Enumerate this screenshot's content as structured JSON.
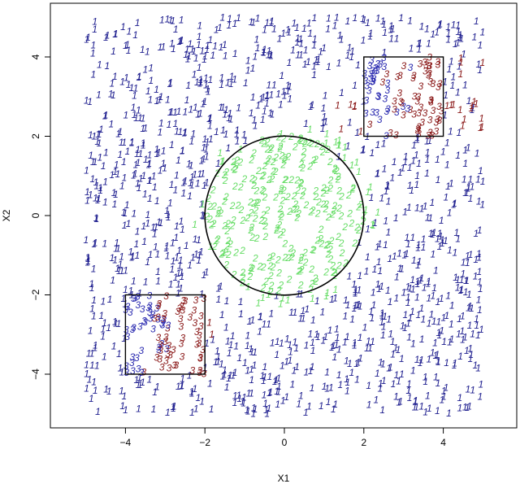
{
  "chart_data": {
    "type": "scatter",
    "xlabel": "X1",
    "ylabel": "X2",
    "xlim": [
      -6.05,
      6.05
    ],
    "ylim": [
      -5.45,
      5.45
    ],
    "xticks": [
      -4,
      -2,
      0,
      2,
      4
    ],
    "yticks": [
      -4,
      -2,
      0,
      2,
      4
    ],
    "xtick_labels": [
      "−4",
      "−2",
      "0",
      "2",
      "4"
    ],
    "ytick_labels": [
      "−4",
      "−2",
      "0",
      "2",
      "4"
    ],
    "grid": false,
    "point_glyphs": {
      "class1": "1",
      "class2": "2",
      "class3": "3"
    },
    "colors": {
      "class1": "#1f1f8f",
      "class2": "#66dd66",
      "class3": "#8b1a1a",
      "class3_alt": "#2b2bb0",
      "shape_outline": "#000000"
    },
    "regions": {
      "circle": {
        "center": [
          0,
          0
        ],
        "radius": 2,
        "label": "2"
      },
      "square_top_right": {
        "x": [
          2,
          4
        ],
        "y": [
          2,
          4
        ],
        "label": "3"
      },
      "square_bottom_left": {
        "x": [
          -4,
          -2
        ],
        "y": [
          -4,
          -2
        ],
        "label": "3"
      }
    },
    "series": [
      {
        "label": "1",
        "region": "outside",
        "n_approx": 1400,
        "x_range": [
          -5,
          5
        ],
        "y_range": [
          -5,
          5
        ]
      },
      {
        "label": "2",
        "region": "circle",
        "n_approx": 230
      },
      {
        "label": "3",
        "region": "squares",
        "n_approx": 180
      }
    ]
  }
}
